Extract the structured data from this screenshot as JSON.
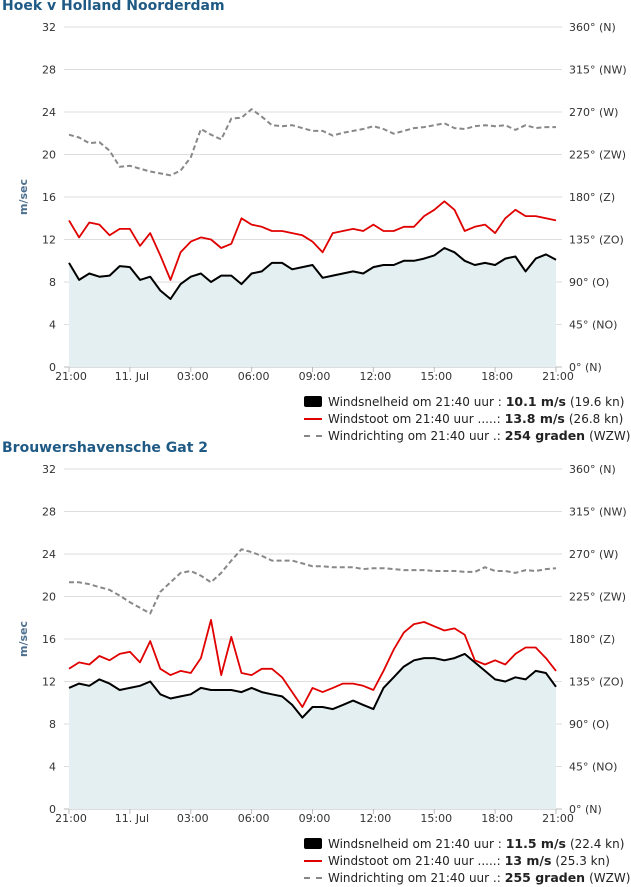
{
  "colors": {
    "title": "#1f5a85",
    "speed": "#000000",
    "gust": "#e00000",
    "direction": "#888888",
    "area": "#e3eff1"
  },
  "chart_data": [
    {
      "type": "line",
      "title": "Hoek v Holland Noorderdam",
      "ylabel": "m/sec",
      "ylim": [
        0,
        32
      ],
      "yticks": [
        "0",
        "4",
        "8",
        "12",
        "16",
        "20",
        "24",
        "28",
        "32"
      ],
      "y2ticks": [
        "0° (N)",
        "45° (NO)",
        "90° (O)",
        "135° (ZO)",
        "180° (Z)",
        "225° (ZW)",
        "270° (W)",
        "315° (NW)",
        "360° (N)"
      ],
      "xticks": [
        "21:00",
        "11. Jul",
        "03:00",
        "06:00",
        "09:00",
        "12:00",
        "15:00",
        "18:00",
        "21:00"
      ],
      "x_hours": [
        0,
        0.5,
        1,
        1.5,
        2,
        2.5,
        3,
        3.5,
        4,
        4.5,
        5,
        5.5,
        6,
        6.5,
        7,
        7.5,
        8,
        8.5,
        9,
        9.5,
        10,
        10.5,
        11,
        11.5,
        12,
        12.5,
        13,
        13.5,
        14,
        14.5,
        15,
        15.5,
        16,
        16.5,
        17,
        17.5,
        18,
        18.5,
        19,
        19.5,
        20,
        20.5,
        21,
        21.5,
        22,
        22.5,
        23,
        23.5,
        24
      ],
      "series": [
        {
          "name": "Windsnelheid",
          "values": [
            9.8,
            8.2,
            8.8,
            8.5,
            8.6,
            9.5,
            9.4,
            8.2,
            8.5,
            7.2,
            6.4,
            7.8,
            8.5,
            8.8,
            8.0,
            8.6,
            8.6,
            7.8,
            8.8,
            9.0,
            9.8,
            9.8,
            9.2,
            9.4,
            9.6,
            8.4,
            8.6,
            8.8,
            9.0,
            8.8,
            9.4,
            9.6,
            9.6,
            10.0,
            10.0,
            10.2,
            10.5,
            11.2,
            10.8,
            10.0,
            9.6,
            9.8,
            9.6,
            10.2,
            10.4,
            9.0,
            10.2,
            10.6,
            10.1
          ]
        },
        {
          "name": "Windstoot",
          "values": [
            13.8,
            12.2,
            13.6,
            13.4,
            12.4,
            13.0,
            13.0,
            11.4,
            12.6,
            10.5,
            8.2,
            10.8,
            11.8,
            12.2,
            12.0,
            11.2,
            11.6,
            14.0,
            13.4,
            13.2,
            12.8,
            12.8,
            12.6,
            12.4,
            11.8,
            10.8,
            12.6,
            12.8,
            13.0,
            12.8,
            13.4,
            12.8,
            12.8,
            13.2,
            13.2,
            14.2,
            14.8,
            15.6,
            14.8,
            12.8,
            13.2,
            13.4,
            12.6,
            14.0,
            14.8,
            14.2,
            14.2,
            14.0,
            13.8
          ]
        },
        {
          "name": "Windrichting",
          "values": [
            246,
            243,
            237,
            238,
            229,
            212,
            213,
            210,
            207,
            205,
            203,
            208,
            222,
            252,
            246,
            241,
            263,
            264,
            273,
            265,
            256,
            255,
            256,
            253,
            250,
            250,
            245,
            248,
            250,
            252,
            255,
            252,
            247,
            250,
            253,
            254,
            256,
            258,
            253,
            252,
            255,
            256,
            255,
            256,
            251,
            256,
            253,
            254,
            254
          ]
        }
      ],
      "legend": {
        "speed": {
          "label": "Windsnelheid om 21:40 uur :",
          "value": "10.1 m/s",
          "extra": "(19.6 kn)"
        },
        "gust": {
          "label": "Windstoot om 21:40 uur .....:",
          "value": "13.8 m/s",
          "extra": "(26.8 kn)"
        },
        "dir": {
          "label": "Windrichting om 21:40 uur .:",
          "value": "254 graden",
          "extra": "(WZW)"
        }
      }
    },
    {
      "type": "line",
      "title": "Brouwershavensche Gat 2",
      "ylabel": "m/sec",
      "ylim": [
        0,
        32
      ],
      "yticks": [
        "0",
        "4",
        "8",
        "12",
        "16",
        "20",
        "24",
        "28",
        "32"
      ],
      "y2ticks": [
        "0° (N)",
        "45° (NO)",
        "90° (O)",
        "135° (ZO)",
        "180° (Z)",
        "225° (ZW)",
        "270° (W)",
        "315° (NW)",
        "360° (N)"
      ],
      "xticks": [
        "21:00",
        "11. Jul",
        "03:00",
        "06:00",
        "09:00",
        "12:00",
        "15:00",
        "18:00",
        "21:00"
      ],
      "x_hours": [
        0,
        0.5,
        1,
        1.5,
        2,
        2.5,
        3,
        3.5,
        4,
        4.5,
        5,
        5.5,
        6,
        6.5,
        7,
        7.5,
        8,
        8.5,
        9,
        9.5,
        10,
        10.5,
        11,
        11.5,
        12,
        12.5,
        13,
        13.5,
        14,
        14.5,
        15,
        15.5,
        16,
        16.5,
        17,
        17.5,
        18,
        18.5,
        19,
        19.5,
        20,
        20.5,
        21,
        21.5,
        22,
        22.5,
        23,
        23.5,
        24
      ],
      "series": [
        {
          "name": "Windsnelheid",
          "values": [
            11.4,
            11.8,
            11.6,
            12.2,
            11.8,
            11.2,
            11.4,
            11.6,
            12.0,
            10.8,
            10.4,
            10.6,
            10.8,
            11.4,
            11.2,
            11.2,
            11.2,
            11.0,
            11.4,
            11.0,
            10.8,
            10.6,
            9.8,
            8.6,
            9.6,
            9.6,
            9.4,
            9.8,
            10.2,
            9.8,
            9.4,
            11.4,
            12.4,
            13.4,
            14.0,
            14.2,
            14.2,
            14.0,
            14.2,
            14.6,
            13.8,
            13.0,
            12.2,
            12.0,
            12.4,
            12.2,
            13.0,
            12.8,
            11.5
          ]
        },
        {
          "name": "Windstoot",
          "values": [
            13.2,
            13.8,
            13.6,
            14.4,
            14.0,
            14.6,
            14.8,
            13.8,
            15.8,
            13.2,
            12.6,
            13.0,
            12.8,
            14.2,
            17.8,
            12.6,
            16.2,
            12.8,
            12.6,
            13.2,
            13.2,
            12.4,
            11.0,
            9.6,
            11.4,
            11.0,
            11.4,
            11.8,
            11.8,
            11.6,
            11.2,
            13.0,
            15.0,
            16.6,
            17.4,
            17.6,
            17.2,
            16.8,
            17.0,
            16.4,
            14.0,
            13.6,
            14.0,
            13.6,
            14.6,
            15.2,
            15.2,
            14.2,
            13.0
          ]
        },
        {
          "name": "Windrichting",
          "values": [
            240,
            240,
            238,
            235,
            232,
            226,
            219,
            213,
            207,
            230,
            240,
            250,
            252,
            247,
            240,
            250,
            263,
            275,
            272,
            268,
            263,
            263,
            263,
            260,
            257,
            257,
            256,
            256,
            256,
            254,
            255,
            255,
            254,
            253,
            253,
            253,
            252,
            252,
            252,
            251,
            251,
            256,
            252,
            252,
            250,
            253,
            252,
            254,
            255
          ]
        }
      ],
      "legend": {
        "speed": {
          "label": "Windsnelheid om 21:40 uur :",
          "value": "11.5 m/s",
          "extra": "(22.4 kn)"
        },
        "gust": {
          "label": "Windstoot om 21:40 uur .....:",
          "value": "13 m/s",
          "extra": "(25.3 kn)"
        },
        "dir": {
          "label": "Windrichting om 21:40 uur .:",
          "value": "255 graden",
          "extra": "(WZW)"
        }
      }
    }
  ]
}
